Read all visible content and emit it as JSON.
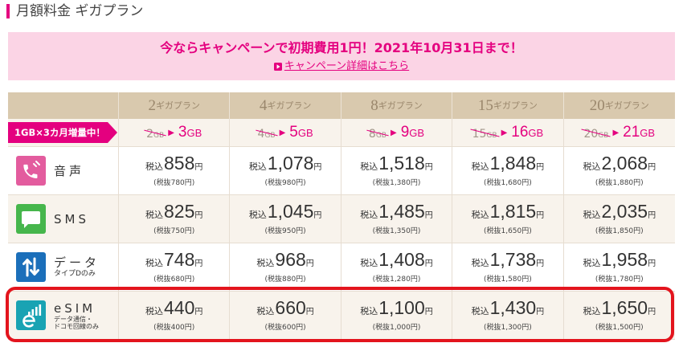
{
  "page": {
    "title": "月額料金 ギガプラン"
  },
  "campaign": {
    "headline": "今ならキャンペーンで初期費用1円！2021年10月31日まで！",
    "link_label": "キャンペーン詳細はこちら",
    "link_icon": "arrow-right-square-icon"
  },
  "table": {
    "plan_unit": "ギガプラン",
    "plans": [
      "2",
      "4",
      "8",
      "15",
      "20"
    ],
    "increase": {
      "badge": "1GB×3カ月増量中！",
      "unit": "GB",
      "arrow": "▶",
      "items": [
        {
          "old": "2",
          "new": "3"
        },
        {
          "old": "4",
          "new": "5"
        },
        {
          "old": "8",
          "new": "9"
        },
        {
          "old": "15",
          "new": "16"
        },
        {
          "old": "20",
          "new": "21"
        }
      ]
    },
    "price_prefix": "税込",
    "price_suffix": "円",
    "rows": [
      {
        "label": "音声",
        "icon": "phone-icon",
        "prices": [
          {
            "amount": "858",
            "excl": "(税抜780円)"
          },
          {
            "amount": "1,078",
            "excl": "(税抜980円)"
          },
          {
            "amount": "1,518",
            "excl": "(税抜1,380円)"
          },
          {
            "amount": "1,848",
            "excl": "(税抜1,680円)"
          },
          {
            "amount": "2,068",
            "excl": "(税抜1,880円)"
          }
        ]
      },
      {
        "label": "SMS",
        "icon": "sms-bubble-icon",
        "prices": [
          {
            "amount": "825",
            "excl": "(税抜750円)"
          },
          {
            "amount": "1,045",
            "excl": "(税抜950円)"
          },
          {
            "amount": "1,485",
            "excl": "(税抜1,350円)"
          },
          {
            "amount": "1,815",
            "excl": "(税抜1,650円)"
          },
          {
            "amount": "2,035",
            "excl": "(税抜1,850円)"
          }
        ]
      },
      {
        "label": "データ",
        "sublabel": "タイプDのみ",
        "icon": "data-arrows-icon",
        "prices": [
          {
            "amount": "748",
            "excl": "(税抜680円)"
          },
          {
            "amount": "968",
            "excl": "(税抜880円)"
          },
          {
            "amount": "1,408",
            "excl": "(税抜1,280円)"
          },
          {
            "amount": "1,738",
            "excl": "(税抜1,580円)"
          },
          {
            "amount": "1,958",
            "excl": "(税抜1,780円)"
          }
        ]
      },
      {
        "label": "eSIM",
        "sublabel": [
          "データ通信・",
          "ドコモ回線のみ"
        ],
        "icon": "esim-icon",
        "highlighted": true,
        "prices": [
          {
            "amount": "440",
            "excl": "(税抜400円)"
          },
          {
            "amount": "660",
            "excl": "(税抜600円)"
          },
          {
            "amount": "1,100",
            "excl": "(税抜1,000円)"
          },
          {
            "amount": "1,430",
            "excl": "(税抜1,300円)"
          },
          {
            "amount": "1,650",
            "excl": "(税抜1,500円)"
          }
        ]
      }
    ]
  },
  "colors": {
    "accent": "#e4007f",
    "banner_bg": "#fbd4e5",
    "header_bg": "#d9c9ae",
    "header_text": "#9a876c",
    "highlight_border": "#e3141d",
    "voice_icon": "#e35c9e",
    "sms_icon": "#46b64c",
    "data_icon": "#1b6fba",
    "esim_icon": "#19a3b3"
  }
}
